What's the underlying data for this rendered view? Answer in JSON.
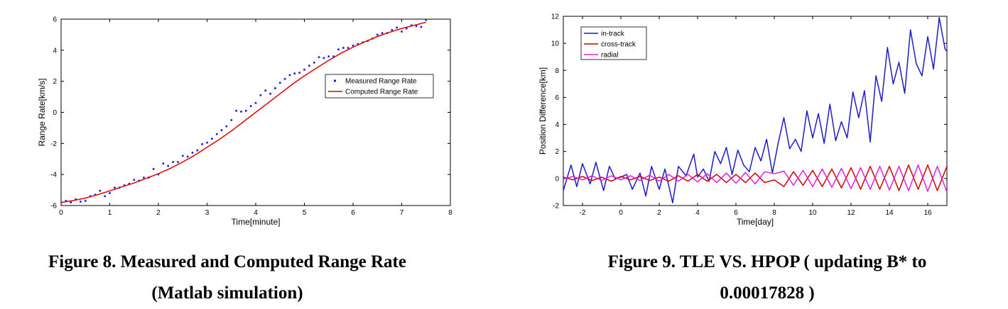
{
  "figure8": {
    "caption_line1": "Figure 8. Measured and Computed Range Rate",
    "caption_line2": "(Matlab simulation)",
    "chart_data": {
      "type": "line",
      "xlabel": "Time[minute]",
      "ylabel": "Range Rate[km/s]",
      "xlim": [
        0,
        8
      ],
      "ylim": [
        -6,
        6
      ],
      "xticks": [
        "0",
        "1",
        "2",
        "3",
        "4",
        "5",
        "6",
        "7",
        "8"
      ],
      "yticks": [
        "-6",
        "-4",
        "-2",
        "0",
        "2",
        "4",
        "6"
      ],
      "legend_position": "right",
      "series": [
        {
          "name": "Measured Range Rate",
          "style": "markers",
          "color": "#1a1adf",
          "x": [
            0.0,
            0.1,
            0.2,
            0.3,
            0.4,
            0.5,
            0.6,
            0.7,
            0.8,
            0.9,
            1.0,
            1.1,
            1.2,
            1.3,
            1.4,
            1.5,
            1.6,
            1.7,
            1.8,
            1.9,
            2.0,
            2.1,
            2.2,
            2.3,
            2.4,
            2.5,
            2.6,
            2.7,
            2.8,
            2.9,
            3.0,
            3.1,
            3.2,
            3.3,
            3.4,
            3.5,
            3.6,
            3.7,
            3.8,
            3.9,
            4.0,
            4.1,
            4.2,
            4.3,
            4.4,
            4.5,
            4.6,
            4.7,
            4.8,
            4.9,
            5.0,
            5.1,
            5.2,
            5.3,
            5.4,
            5.5,
            5.6,
            5.7,
            5.8,
            5.9,
            6.0,
            6.1,
            6.2,
            6.3,
            6.4,
            6.5,
            6.6,
            6.7,
            6.8,
            6.9,
            7.0,
            7.1,
            7.2,
            7.3,
            7.4,
            7.5
          ],
          "y": [
            -5.8,
            -5.7,
            -5.8,
            -5.6,
            -5.75,
            -5.7,
            -5.4,
            -5.3,
            -5.05,
            -5.4,
            -5.2,
            -4.85,
            -4.85,
            -4.7,
            -4.6,
            -4.35,
            -4.4,
            -4.2,
            -4.2,
            -3.65,
            -4.0,
            -3.3,
            -3.45,
            -3.2,
            -3.2,
            -2.8,
            -2.85,
            -2.6,
            -2.45,
            -2.05,
            -1.95,
            -1.7,
            -1.4,
            -1.15,
            -0.9,
            -0.5,
            0.1,
            0.05,
            0.1,
            0.4,
            0.6,
            1.1,
            1.4,
            1.2,
            1.55,
            1.9,
            2.15,
            2.4,
            2.5,
            2.55,
            2.75,
            3.0,
            3.2,
            3.55,
            3.5,
            3.6,
            3.6,
            4.05,
            4.15,
            4.15,
            4.3,
            4.4,
            4.5,
            4.6,
            4.75,
            5.0,
            5.1,
            5.1,
            5.3,
            5.45,
            5.2,
            5.4,
            5.6,
            5.55,
            5.5,
            5.95
          ]
        },
        {
          "name": "Computed Range Rate",
          "style": "line",
          "color": "#e00000",
          "x": [
            0.0,
            0.25,
            0.5,
            0.75,
            1.0,
            1.25,
            1.5,
            1.75,
            2.0,
            2.25,
            2.5,
            2.75,
            3.0,
            3.25,
            3.5,
            3.75,
            4.0,
            4.25,
            4.5,
            4.75,
            5.0,
            5.25,
            5.5,
            5.75,
            6.0,
            6.25,
            6.5,
            6.75,
            7.0,
            7.25,
            7.5
          ],
          "y": [
            -5.8,
            -5.68,
            -5.52,
            -5.3,
            -5.06,
            -4.8,
            -4.55,
            -4.25,
            -3.95,
            -3.6,
            -3.2,
            -2.75,
            -2.25,
            -1.75,
            -1.2,
            -0.6,
            0.0,
            0.6,
            1.2,
            1.8,
            2.35,
            2.85,
            3.35,
            3.8,
            4.2,
            4.55,
            4.88,
            5.15,
            5.4,
            5.6,
            5.8
          ]
        }
      ]
    }
  },
  "figure9": {
    "caption_line1": "Figure 9. TLE VS. HPOP ( updating B* to",
    "caption_line2": "0.00017828 )",
    "chart_data": {
      "type": "line",
      "xlabel": "Time[day]",
      "ylabel": "Position Difference[km]",
      "xlim": [
        -3,
        17
      ],
      "ylim": [
        -2,
        12
      ],
      "xticks": [
        "-2",
        "0",
        "2",
        "4",
        "6",
        "8",
        "10",
        "12",
        "14",
        "16"
      ],
      "yticks": [
        "-2",
        "0",
        "2",
        "4",
        "6",
        "8",
        "10",
        "12"
      ],
      "legend_position": "top-left",
      "series": [
        {
          "name": "in-track",
          "color": "#1c1cc8",
          "x": [
            -3,
            -2.6,
            -2.3,
            -2.0,
            -1.6,
            -1.3,
            -0.9,
            -0.6,
            -0.3,
            0.0,
            0.3,
            0.6,
            1.0,
            1.3,
            1.6,
            2.0,
            2.3,
            2.7,
            3.0,
            3.4,
            3.8,
            4.0,
            4.3,
            4.6,
            4.9,
            5.2,
            5.5,
            5.8,
            6.1,
            6.4,
            6.7,
            7.0,
            7.3,
            7.6,
            7.9,
            8.2,
            8.5,
            8.8,
            9.1,
            9.4,
            9.7,
            10.0,
            10.3,
            10.6,
            10.9,
            11.2,
            11.5,
            11.8,
            12.1,
            12.4,
            12.7,
            13.0,
            13.3,
            13.6,
            13.9,
            14.2,
            14.5,
            14.8,
            15.1,
            15.4,
            15.7,
            16.0,
            16.3,
            16.6,
            16.9,
            17.0
          ],
          "y": [
            -0.9,
            1.0,
            -0.6,
            1.1,
            -0.4,
            1.2,
            -0.9,
            0.9,
            0.0,
            0.1,
            0.3,
            -0.8,
            0.4,
            -1.3,
            0.9,
            -0.8,
            0.7,
            -1.8,
            0.9,
            0.2,
            1.8,
            0.1,
            0.7,
            -0.2,
            2.0,
            1.1,
            2.3,
            0.3,
            2.1,
            1.0,
            0.5,
            2.3,
            1.3,
            2.9,
            0.4,
            2.6,
            4.5,
            2.2,
            2.9,
            2.0,
            5.0,
            3.0,
            4.8,
            2.6,
            5.5,
            2.8,
            4.2,
            3.0,
            6.4,
            4.5,
            6.5,
            2.7,
            7.6,
            5.7,
            9.7,
            7.0,
            8.6,
            6.3,
            11.0,
            8.5,
            7.6,
            10.5,
            8.1,
            11.9,
            9.6,
            9.4
          ]
        },
        {
          "name": "cross-track",
          "color": "#d00000",
          "x": [
            -3,
            -2.5,
            -2.0,
            -1.5,
            -1.0,
            -0.5,
            0.0,
            0.5,
            1.0,
            1.5,
            2.0,
            2.5,
            3.0,
            3.5,
            4.0,
            4.5,
            5.0,
            5.5,
            6.0,
            6.5,
            7.0,
            7.5,
            8.0,
            8.5,
            9.0,
            9.5,
            10.0,
            10.5,
            11.0,
            11.5,
            12.0,
            12.5,
            13.0,
            13.5,
            14.0,
            14.5,
            15.0,
            15.5,
            16.0,
            16.5,
            17.0
          ],
          "y": [
            0.1,
            -0.1,
            0.15,
            -0.15,
            0.1,
            -0.2,
            0.15,
            -0.1,
            0.15,
            -0.15,
            0.1,
            -0.2,
            0.2,
            -0.2,
            0.3,
            -0.2,
            0.3,
            -0.3,
            0.3,
            -0.3,
            0.4,
            -0.3,
            -0.1,
            -0.6,
            0.5,
            -0.5,
            0.6,
            -0.6,
            0.7,
            -0.7,
            0.8,
            -0.8,
            0.9,
            -0.8,
            0.9,
            -0.9,
            1.0,
            -0.8,
            1.0,
            -0.9,
            0.9
          ]
        },
        {
          "name": "radial",
          "color": "#e020e0",
          "x": [
            -3,
            -2.5,
            -2.0,
            -1.5,
            -1.0,
            -0.5,
            0.0,
            0.5,
            1.0,
            1.5,
            2.0,
            2.5,
            3.0,
            3.5,
            4.0,
            4.5,
            5.0,
            5.5,
            6.0,
            6.5,
            7.0,
            7.5,
            8.0,
            8.5,
            9.0,
            9.5,
            10.0,
            10.5,
            11.0,
            11.5,
            12.0,
            12.5,
            13.0,
            13.5,
            14.0,
            14.5,
            15.0,
            15.5,
            16.0,
            16.5,
            17.0
          ],
          "y": [
            -0.05,
            0.15,
            -0.1,
            0.2,
            -0.15,
            0.2,
            -0.1,
            0.2,
            -0.15,
            0.25,
            -0.2,
            0.3,
            -0.2,
            0.3,
            -0.25,
            0.35,
            -0.3,
            0.4,
            -0.35,
            0.45,
            -0.4,
            0.5,
            0.35,
            0.55,
            -0.5,
            0.6,
            -0.6,
            0.7,
            -0.65,
            0.75,
            -0.75,
            0.8,
            -0.8,
            0.9,
            -0.85,
            0.9,
            -0.9,
            1.0,
            -0.95,
            0.9,
            -1.0
          ]
        }
      ]
    }
  }
}
